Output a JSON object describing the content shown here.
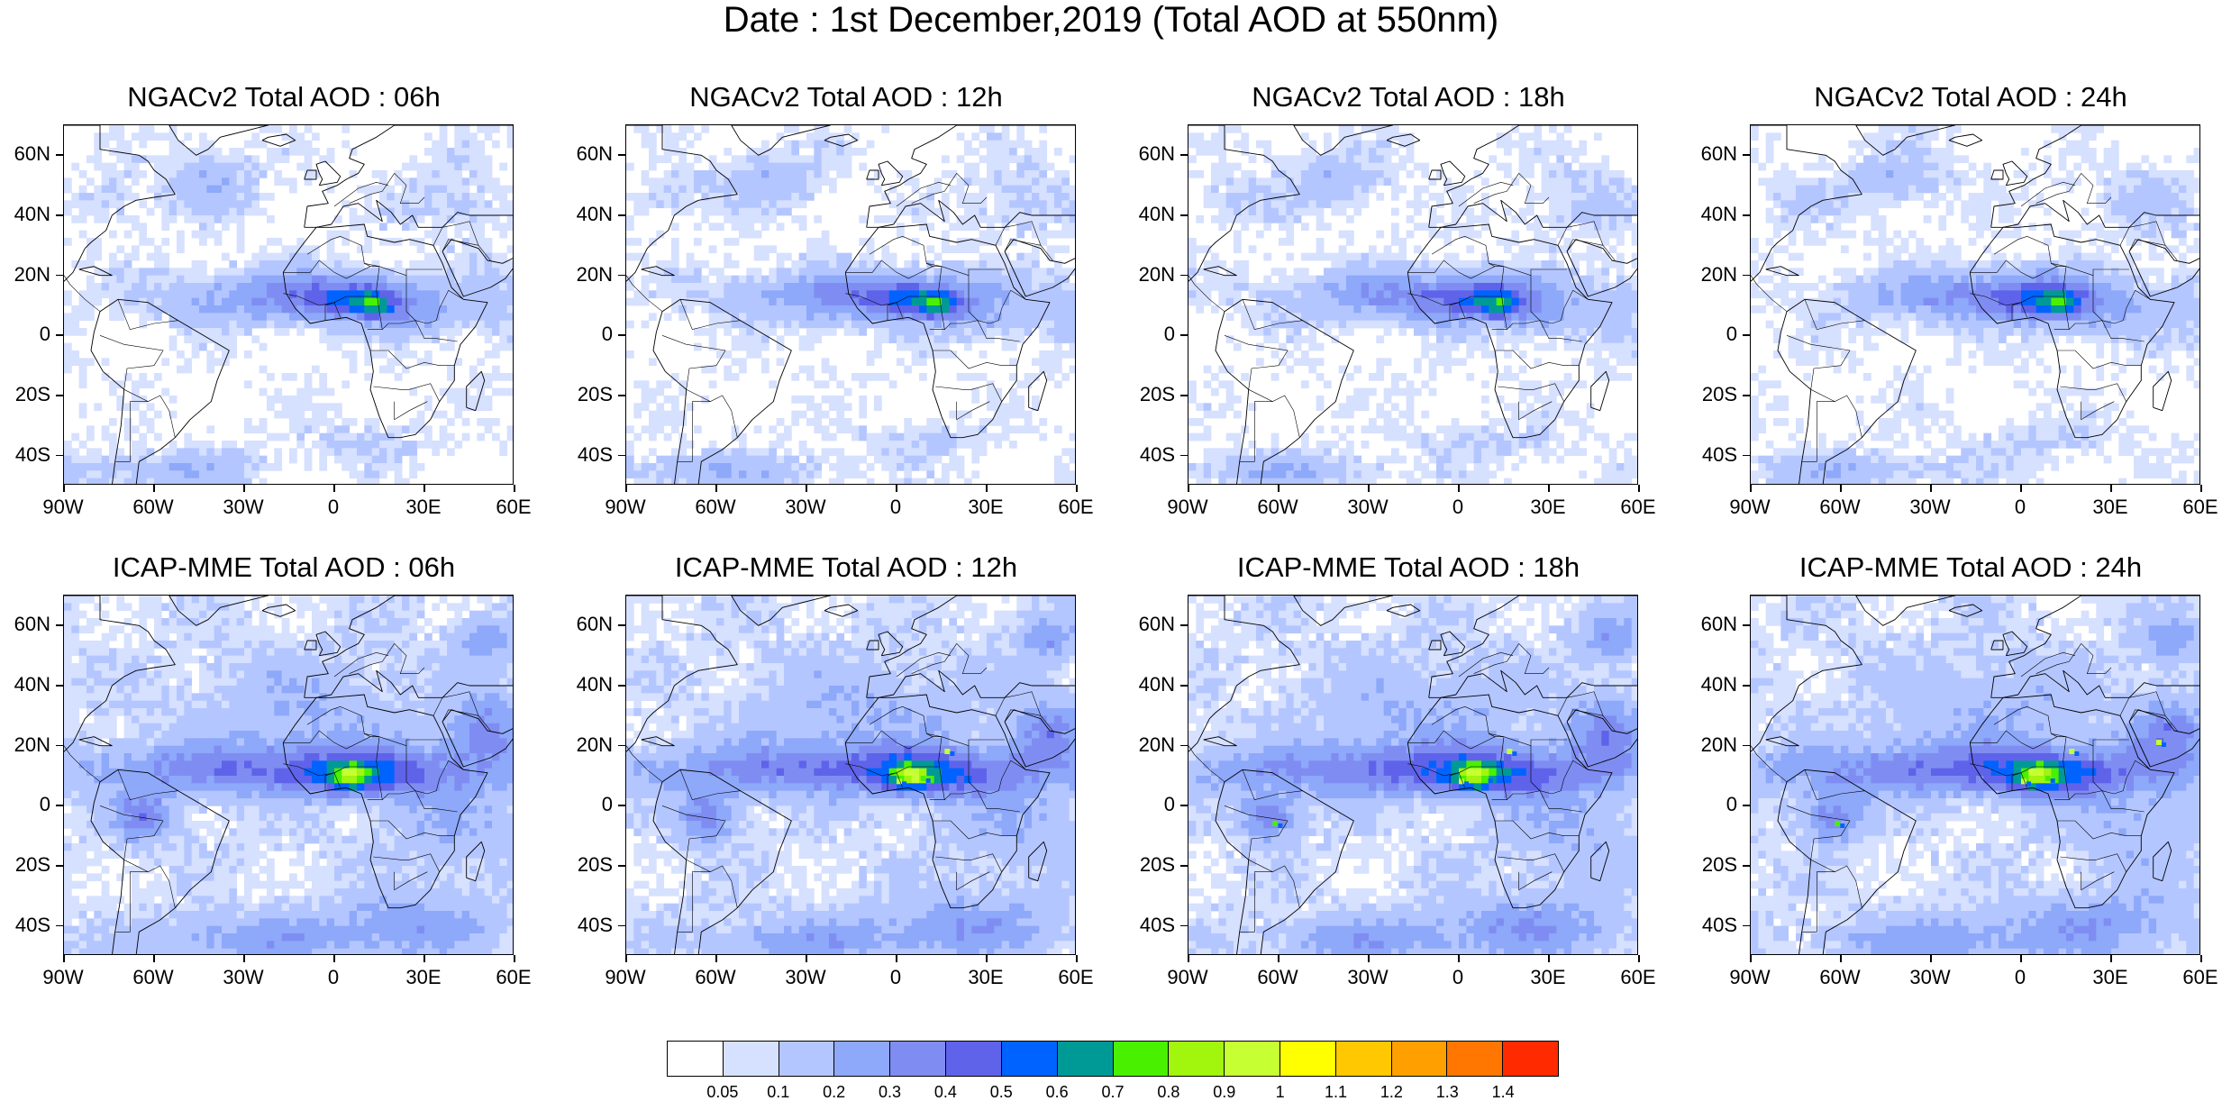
{
  "title": "Date : 1st December,2019 (Total AOD at 550nm)",
  "panels": [
    {
      "title": "NGACv2 Total AOD : 06h",
      "model": "ngac"
    },
    {
      "title": "NGACv2 Total AOD : 12h",
      "model": "ngac"
    },
    {
      "title": "NGACv2 Total AOD : 18h",
      "model": "ngac"
    },
    {
      "title": "NGACv2 Total AOD : 24h",
      "model": "ngac"
    },
    {
      "title": "ICAP-MME Total AOD : 06h",
      "model": "icap"
    },
    {
      "title": "ICAP-MME Total AOD : 12h",
      "model": "icap"
    },
    {
      "title": "ICAP-MME Total AOD : 18h",
      "model": "icap"
    },
    {
      "title": "ICAP-MME Total AOD : 24h",
      "model": "icap"
    }
  ],
  "lat_labels": [
    "60N",
    "40N",
    "20N",
    "0",
    "20S",
    "40S"
  ],
  "lon_labels": [
    "90W",
    "60W",
    "30W",
    "0",
    "30E",
    "60E"
  ],
  "colorbar": {
    "colors": [
      "#ffffff",
      "#d6e0ff",
      "#b4c6ff",
      "#8ea8fa",
      "#7f8df2",
      "#5f63ea",
      "#0063ff",
      "#009a96",
      "#49f000",
      "#a2f50d",
      "#c6ff32",
      "#ffff00",
      "#ffc800",
      "#ff9f00",
      "#ff7600",
      "#ff2a00"
    ],
    "labels": [
      "0.05",
      "0.1",
      "0.2",
      "0.3",
      "0.4",
      "0.5",
      "0.6",
      "0.7",
      "0.8",
      "0.9",
      "1",
      "1.1",
      "1.2",
      "1.3",
      "1.4"
    ]
  }
}
